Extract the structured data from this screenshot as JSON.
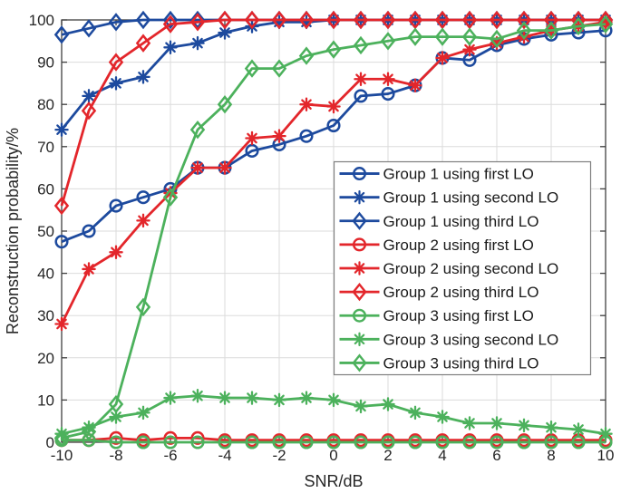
{
  "chart_data": {
    "type": "line",
    "title": "",
    "xlabel": "SNR/dB",
    "ylabel": "Reconstruction probability/%",
    "xlim": [
      -10,
      10
    ],
    "ylim": [
      0,
      100
    ],
    "x_ticks": [
      -10,
      -8,
      -6,
      -4,
      -2,
      0,
      2,
      4,
      6,
      8,
      10
    ],
    "y_ticks": [
      0,
      10,
      20,
      30,
      40,
      50,
      60,
      70,
      80,
      90,
      100
    ],
    "grid": true,
    "legend_position": "middle-right",
    "x": [
      -10,
      -9,
      -8,
      -7,
      -6,
      -5,
      -4,
      -3,
      -2,
      -1,
      0,
      1,
      2,
      3,
      4,
      5,
      6,
      7,
      8,
      9,
      10
    ],
    "series": [
      {
        "name": "Group 1 using first LO",
        "color": "#1d4a9e",
        "marker": "circle",
        "values": [
          47.5,
          50,
          56,
          58,
          60,
          65,
          65,
          69,
          70.5,
          72.5,
          75,
          82,
          82.5,
          84.5,
          91,
          90.5,
          94,
          95.5,
          96.5,
          97,
          97.5
        ]
      },
      {
        "name": "Group 1 using second LO",
        "color": "#1d4a9e",
        "marker": "asterisk",
        "values": [
          74,
          82,
          85,
          86.5,
          93.5,
          94.5,
          97,
          98.5,
          99.5,
          99.5,
          100,
          100,
          100,
          100,
          100,
          100,
          100,
          100,
          100,
          100,
          100
        ]
      },
      {
        "name": "Group 1 using third LO",
        "color": "#1d4a9e",
        "marker": "diamond",
        "values": [
          96.5,
          98,
          99.5,
          100,
          100,
          100,
          100,
          100,
          100,
          100,
          100,
          100,
          100,
          100,
          100,
          100,
          100,
          100,
          100,
          100,
          100
        ]
      },
      {
        "name": "Group 2 using first LO",
        "color": "#e3262b",
        "marker": "circle",
        "values": [
          0.5,
          0.5,
          1,
          0.5,
          1,
          1,
          0.5,
          0.5,
          0.5,
          0.5,
          0.5,
          0.5,
          0.5,
          0.5,
          0.5,
          0.5,
          0.5,
          0.5,
          0.5,
          0.5,
          0.5
        ]
      },
      {
        "name": "Group 2 using second LO",
        "color": "#e3262b",
        "marker": "asterisk",
        "values": [
          28,
          41,
          45,
          52.5,
          59,
          65,
          65,
          72,
          72.5,
          80,
          79.5,
          86,
          86,
          84.5,
          91,
          93,
          94.5,
          96,
          97.5,
          98.5,
          99.5
        ]
      },
      {
        "name": "Group 2 using third LO",
        "color": "#e3262b",
        "marker": "diamond",
        "values": [
          56,
          78.5,
          90,
          94.5,
          99,
          99.5,
          100,
          100,
          100,
          100,
          100,
          100,
          100,
          100,
          100,
          100,
          100,
          100,
          100,
          100,
          100
        ]
      },
      {
        "name": "Group 3 using first LO",
        "color": "#4cb15c",
        "marker": "circle",
        "values": [
          0.5,
          0.5,
          0,
          0,
          0,
          0,
          0,
          0,
          0,
          0,
          0,
          0,
          0,
          0,
          0,
          0,
          0,
          0,
          0,
          0,
          0
        ]
      },
      {
        "name": "Group 3 using second LO",
        "color": "#4cb15c",
        "marker": "asterisk",
        "values": [
          2,
          3.5,
          6,
          7,
          10.5,
          11,
          10.5,
          10.5,
          10,
          10.5,
          10,
          8.5,
          9,
          7,
          6,
          4.5,
          4.5,
          4,
          3.5,
          3,
          2
        ]
      },
      {
        "name": "Group 3 using third LO",
        "color": "#4cb15c",
        "marker": "diamond",
        "values": [
          1,
          2.5,
          9,
          32,
          58,
          74,
          80,
          88.5,
          88.5,
          91.5,
          93,
          94,
          95,
          96,
          96,
          96,
          95.5,
          97.5,
          97.5,
          98.5,
          99
        ]
      }
    ]
  },
  "style": {
    "grid_color": "#dbdbdb",
    "axis_color": "#404040",
    "text_color": "#262626",
    "legend_border_color": "#7f7f7f",
    "legend_background": "#ffffff"
  }
}
